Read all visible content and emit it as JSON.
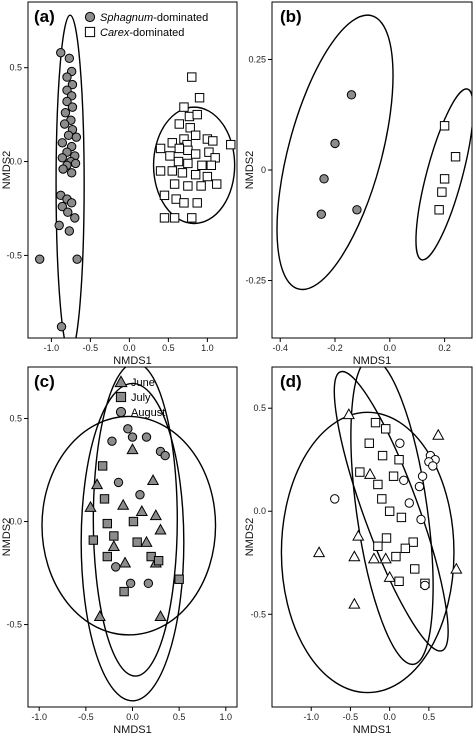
{
  "figure": {
    "panels": [
      "(a)",
      "(b)",
      "(c)",
      "(d)"
    ]
  },
  "colors": {
    "point_fill_gray": "#8c8c8c",
    "point_fill_white": "#ffffff",
    "stroke": "#000000"
  },
  "chart_data": [
    {
      "type": "scatter",
      "panel": "(a)",
      "xlabel": "NMDS1",
      "ylabel": "NMDS2",
      "xlim": [
        -1.3,
        1.38
      ],
      "ylim": [
        -0.94,
        0.85
      ],
      "xticks": [
        -1.0,
        -0.5,
        0.0,
        0.5,
        1.0
      ],
      "xtick_labels": [
        "-1.0",
        "-0.5",
        "0.0",
        "0.5",
        "1.0"
      ],
      "yticks": [
        -0.5,
        0.0,
        0.5
      ],
      "ytick_labels": [
        "-0.5",
        "0.0",
        "0.5"
      ],
      "legend": [
        {
          "italic": "Sphagnum",
          "rest": "-dominated",
          "marker": "circle",
          "fill": "gray"
        },
        {
          "italic": "Carex",
          "rest": "-dominated",
          "marker": "square",
          "fill": "white"
        }
      ],
      "legend_position": "top",
      "series": [
        {
          "name": "Sphagnum-dominated",
          "marker": "circle",
          "fill": "gray",
          "points": [
            [
              -0.88,
              0.58
            ],
            [
              -0.77,
              0.55
            ],
            [
              -0.74,
              0.48
            ],
            [
              -0.8,
              0.45
            ],
            [
              -0.73,
              0.41
            ],
            [
              -0.8,
              0.38
            ],
            [
              -0.74,
              0.35
            ],
            [
              -0.8,
              0.32
            ],
            [
              -0.73,
              0.29
            ],
            [
              -0.82,
              0.26
            ],
            [
              -0.75,
              0.22
            ],
            [
              -0.83,
              0.2
            ],
            [
              -0.73,
              0.17
            ],
            [
              -0.78,
              0.14
            ],
            [
              -0.68,
              0.13
            ],
            [
              -0.86,
              0.1
            ],
            [
              -0.74,
              0.08
            ],
            [
              -0.8,
              0.05
            ],
            [
              -0.7,
              0.03
            ],
            [
              -0.86,
              0.02
            ],
            [
              -0.75,
              0.0
            ],
            [
              -0.69,
              -0.01
            ],
            [
              -0.8,
              -0.02
            ],
            [
              -0.85,
              -0.04
            ],
            [
              -0.74,
              -0.06
            ],
            [
              -0.88,
              -0.18
            ],
            [
              -0.8,
              -0.2
            ],
            [
              -0.74,
              -0.22
            ],
            [
              -0.86,
              -0.24
            ],
            [
              -0.79,
              -0.27
            ],
            [
              -0.7,
              -0.3
            ],
            [
              -0.9,
              -0.34
            ],
            [
              -0.77,
              -0.37
            ],
            [
              -0.67,
              -0.52
            ],
            [
              -1.15,
              -0.52
            ],
            [
              -0.87,
              -0.88
            ]
          ]
        },
        {
          "name": "Carex-dominated",
          "marker": "square",
          "fill": "white",
          "points": [
            [
              0.8,
              0.45
            ],
            [
              0.9,
              0.34
            ],
            [
              0.7,
              0.29
            ],
            [
              0.77,
              0.24
            ],
            [
              0.87,
              0.25
            ],
            [
              0.64,
              0.2
            ],
            [
              0.78,
              0.18
            ],
            [
              0.85,
              0.14
            ],
            [
              0.55,
              0.1
            ],
            [
              0.7,
              0.12
            ],
            [
              0.74,
              0.09
            ],
            [
              1.0,
              0.12
            ],
            [
              1.07,
              0.11
            ],
            [
              1.3,
              0.09
            ],
            [
              0.4,
              0.07
            ],
            [
              0.64,
              0.07
            ],
            [
              0.75,
              0.06
            ],
            [
              1.02,
              0.05
            ],
            [
              0.52,
              0.03
            ],
            [
              0.85,
              0.04
            ],
            [
              1.1,
              0.02
            ],
            [
              0.63,
              0.0
            ],
            [
              0.75,
              -0.01
            ],
            [
              0.93,
              -0.02
            ],
            [
              1.05,
              -0.02
            ],
            [
              0.4,
              -0.05
            ],
            [
              0.55,
              -0.05
            ],
            [
              0.68,
              -0.06
            ],
            [
              0.85,
              -0.07
            ],
            [
              1.0,
              -0.08
            ],
            [
              0.58,
              -0.12
            ],
            [
              0.75,
              -0.13
            ],
            [
              0.92,
              -0.13
            ],
            [
              1.12,
              -0.12
            ],
            [
              0.45,
              -0.18
            ],
            [
              0.6,
              -0.2
            ],
            [
              0.7,
              -0.22
            ],
            [
              0.87,
              -0.22
            ],
            [
              0.45,
              -0.3
            ],
            [
              0.58,
              -0.3
            ],
            [
              0.8,
              -0.3
            ]
          ]
        }
      ],
      "ellipses": [
        {
          "cx": -0.76,
          "cy": -0.12,
          "rx": 0.18,
          "ry": 0.9,
          "angle": 0
        },
        {
          "cx": 0.83,
          "cy": -0.02,
          "rx": 0.52,
          "ry": 0.31,
          "angle": 0
        }
      ]
    },
    {
      "type": "scatter",
      "panel": "(b)",
      "xlabel": "NMDS1",
      "ylabel": "NMDS2",
      "xlim": [
        -0.43,
        0.3
      ],
      "ylim": [
        -0.38,
        0.38
      ],
      "xticks": [
        -0.4,
        -0.2,
        0.0,
        0.2
      ],
      "xtick_labels": [
        "-0.4",
        "-0.2",
        "0.0",
        "0.2"
      ],
      "yticks": [
        -0.25,
        0.0,
        0.25
      ],
      "ytick_labels": [
        "-0.25",
        "0",
        "0.25"
      ],
      "series": [
        {
          "name": "",
          "marker": "circle",
          "fill": "gray",
          "points": [
            [
              -0.14,
              0.17
            ],
            [
              -0.2,
              0.06
            ],
            [
              -0.24,
              -0.02
            ],
            [
              -0.25,
              -0.1
            ],
            [
              -0.12,
              -0.09
            ]
          ]
        },
        {
          "name": "",
          "marker": "square",
          "fill": "white",
          "points": [
            [
              0.2,
              0.1
            ],
            [
              0.24,
              0.03
            ],
            [
              0.2,
              -0.02
            ],
            [
              0.19,
              -0.05
            ],
            [
              0.18,
              -0.09
            ]
          ]
        }
      ],
      "ellipses": [
        {
          "cx": -0.2,
          "cy": 0.04,
          "rx": 0.17,
          "ry": 0.32,
          "angle": 15
        },
        {
          "cx": 0.2,
          "cy": -0.01,
          "rx": 0.065,
          "ry": 0.2,
          "angle": 15
        }
      ]
    },
    {
      "type": "scatter",
      "panel": "(c)",
      "xlabel": "NMDS1",
      "ylabel": "NMDS2",
      "xlim": [
        -1.12,
        1.12
      ],
      "ylim": [
        -0.9,
        0.75
      ],
      "xticks": [
        -1.0,
        -0.5,
        0.0,
        0.5,
        1.0
      ],
      "xtick_labels": [
        "-1.0",
        "-0.5",
        "0.0",
        "0.5",
        "1.0"
      ],
      "yticks": [
        -0.5,
        0.0,
        0.5
      ],
      "ytick_labels": [
        "-0.5",
        "0.0",
        "0.5"
      ],
      "legend": [
        {
          "italic": "",
          "rest": "June",
          "marker": "triangle",
          "fill": "gray"
        },
        {
          "italic": "",
          "rest": "July",
          "marker": "square",
          "fill": "gray"
        },
        {
          "italic": "",
          "rest": "August",
          "marker": "circle",
          "fill": "gray"
        }
      ],
      "legend_position": "top",
      "series": [
        {
          "name": "June",
          "marker": "triangle",
          "fill": "gray",
          "points": [
            [
              0.0,
              0.35
            ],
            [
              -0.38,
              0.18
            ],
            [
              0.22,
              0.2
            ],
            [
              -0.1,
              0.08
            ],
            [
              0.1,
              0.05
            ],
            [
              0.25,
              0.03
            ],
            [
              -0.45,
              0.07
            ],
            [
              0.15,
              -0.1
            ],
            [
              0.3,
              -0.04
            ],
            [
              -0.2,
              -0.12
            ],
            [
              -0.08,
              -0.2
            ],
            [
              0.25,
              -0.2
            ],
            [
              -0.35,
              -0.46
            ],
            [
              0.3,
              -0.46
            ]
          ]
        },
        {
          "name": "July",
          "marker": "square",
          "fill": "gray",
          "points": [
            [
              -0.32,
              0.27
            ],
            [
              -0.3,
              0.11
            ],
            [
              -0.27,
              -0.01
            ],
            [
              0.01,
              0.0
            ],
            [
              -0.42,
              -0.09
            ],
            [
              -0.2,
              -0.07
            ],
            [
              0.05,
              -0.1
            ],
            [
              -0.27,
              -0.17
            ],
            [
              0.2,
              -0.17
            ],
            [
              0.28,
              -0.19
            ],
            [
              0.5,
              -0.28
            ],
            [
              -0.09,
              -0.34
            ]
          ]
        },
        {
          "name": "August",
          "marker": "circle",
          "fill": "gray",
          "points": [
            [
              -0.05,
              0.45
            ],
            [
              0.0,
              0.41
            ],
            [
              0.15,
              0.41
            ],
            [
              -0.22,
              0.39
            ],
            [
              0.3,
              0.34
            ],
            [
              0.35,
              0.32
            ],
            [
              -0.15,
              0.19
            ],
            [
              0.08,
              0.13
            ],
            [
              -0.18,
              -0.22
            ],
            [
              -0.02,
              -0.3
            ],
            [
              0.17,
              -0.3
            ]
          ]
        }
      ],
      "ellipses": [
        {
          "cx": 0.0,
          "cy": -0.1,
          "rx": 0.55,
          "ry": 0.77,
          "angle": 0
        },
        {
          "cx": 0.03,
          "cy": 0.01,
          "rx": 0.45,
          "ry": 0.76,
          "angle": 0
        },
        {
          "cx": -0.04,
          "cy": -0.02,
          "rx": 0.93,
          "ry": 0.53,
          "angle": 0
        }
      ]
    },
    {
      "type": "scatter",
      "panel": "(d)",
      "xlabel": "NMDS1",
      "ylabel": "NMDS2",
      "xlim": [
        -1.5,
        1.05
      ],
      "ylim": [
        -0.95,
        0.7
      ],
      "xticks": [
        -1.0,
        -0.5,
        0.0,
        0.5
      ],
      "xtick_labels": [
        "-1.0",
        "-0.5",
        "0.0",
        "0.5"
      ],
      "yticks": [
        -0.5,
        0.0,
        0.5
      ],
      "ytick_labels": [
        "-0.5",
        "0.0",
        "0.5"
      ],
      "series": [
        {
          "name": "",
          "marker": "triangle",
          "fill": "white",
          "points": [
            [
              -0.52,
              0.47
            ],
            [
              0.62,
              0.37
            ],
            [
              -0.25,
              0.18
            ],
            [
              -0.4,
              -0.12
            ],
            [
              -0.9,
              -0.2
            ],
            [
              -0.45,
              -0.22
            ],
            [
              -0.2,
              -0.23
            ],
            [
              -0.05,
              -0.23
            ],
            [
              0.85,
              -0.28
            ],
            [
              0.0,
              -0.32
            ],
            [
              -0.45,
              -0.45
            ]
          ]
        },
        {
          "name": "",
          "marker": "square",
          "fill": "white",
          "points": [
            [
              -0.18,
              0.43
            ],
            [
              -0.05,
              0.4
            ],
            [
              -0.26,
              0.33
            ],
            [
              -0.09,
              0.27
            ],
            [
              0.12,
              0.25
            ],
            [
              -0.38,
              0.19
            ],
            [
              0.05,
              0.17
            ],
            [
              -0.15,
              0.13
            ],
            [
              -0.1,
              0.06
            ],
            [
              0.0,
              0.0
            ],
            [
              0.15,
              -0.03
            ],
            [
              -0.04,
              -0.13
            ],
            [
              0.3,
              -0.15
            ],
            [
              -0.15,
              -0.17
            ],
            [
              0.2,
              -0.18
            ],
            [
              0.08,
              -0.22
            ],
            [
              0.32,
              -0.28
            ],
            [
              0.12,
              -0.34
            ],
            [
              0.45,
              -0.35
            ]
          ]
        },
        {
          "name": "",
          "marker": "circle",
          "fill": "white",
          "points": [
            [
              0.13,
              0.33
            ],
            [
              0.52,
              0.27
            ],
            [
              0.58,
              0.25
            ],
            [
              0.5,
              0.24
            ],
            [
              0.55,
              0.22
            ],
            [
              0.42,
              0.17
            ],
            [
              0.18,
              0.15
            ],
            [
              0.38,
              0.12
            ],
            [
              -0.7,
              0.06
            ],
            [
              0.25,
              0.04
            ],
            [
              0.4,
              -0.04
            ],
            [
              0.45,
              -0.36
            ]
          ]
        }
      ],
      "ellipses": [
        {
          "cx": 0.02,
          "cy": 0.0,
          "rx": 0.35,
          "ry": 0.72,
          "angle": -20
        },
        {
          "cx": 0.03,
          "cy": 0.0,
          "rx": 0.45,
          "ry": 0.75,
          "angle": -8
        },
        {
          "cx": -0.28,
          "cy": -0.2,
          "rx": 1.1,
          "ry": 0.68,
          "angle": 0
        }
      ]
    }
  ]
}
